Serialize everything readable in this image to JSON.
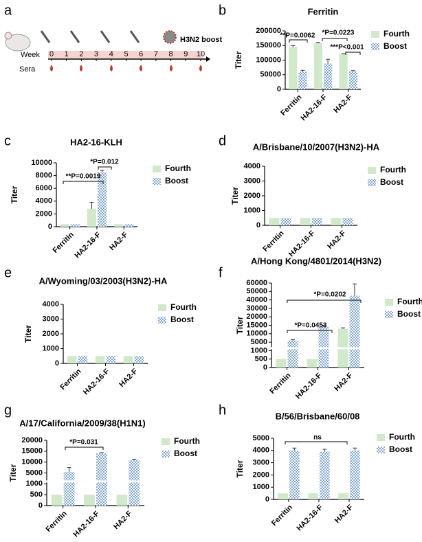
{
  "timeline": {
    "label": "a",
    "week_label": "Week",
    "sera_label": "Sera",
    "weeks": [
      0,
      1,
      2,
      3,
      4,
      5,
      6,
      7,
      8,
      9,
      10
    ],
    "boost_label": "H3N2 boost"
  },
  "chart_data": [
    {
      "type": "bar",
      "label": "b",
      "title": "Ferritin",
      "ylabel": "Titer",
      "categories": [
        "Ferritin",
        "HA2-16-F",
        "HA2-F"
      ],
      "series": [
        {
          "name": "Fourth",
          "color": "#cfe9c9",
          "values": [
            145000,
            158000,
            120000
          ],
          "errors": [
            5000,
            3000,
            2000
          ]
        },
        {
          "name": "Boost",
          "color": "#7fa6d8",
          "values": [
            60000,
            88000,
            62000
          ],
          "errors": [
            5000,
            15000,
            2000
          ]
        }
      ],
      "ylim": [
        0,
        200000
      ],
      "yticks": [
        0,
        50000,
        100000,
        150000,
        200000
      ],
      "annotations": [
        "**P=0.0062",
        "*P=0.0223",
        "***P<0.001"
      ]
    },
    {
      "type": "bar",
      "label": "c",
      "title": "HA2-16-KLH",
      "ylabel": "Titer",
      "categories": [
        "Ferritin",
        "HA2-16-F",
        "HA2-F"
      ],
      "series": [
        {
          "name": "Fourth",
          "color": "#cfe9c9",
          "values": [
            400,
            2800,
            400
          ],
          "errors": [
            0,
            1000,
            0
          ]
        },
        {
          "name": "Boost",
          "color": "#7fa6d8",
          "values": [
            400,
            8500,
            400
          ],
          "errors": [
            0,
            300,
            0
          ]
        }
      ],
      "ylim": [
        0,
        10000
      ],
      "yticks": [
        0,
        2000,
        4000,
        6000,
        8000,
        10000
      ],
      "annotations": [
        "**P=0.0019",
        "*P=0.012"
      ]
    },
    {
      "type": "bar",
      "label": "d",
      "title": "A/Brisbane/10/2007(H3N2)-HA",
      "ylabel": "Titer",
      "categories": [
        "Ferritin",
        "HA2-16-F",
        "HA2-F"
      ],
      "series": [
        {
          "name": "Fourth",
          "color": "#cfe9c9",
          "values": [
            500,
            500,
            500
          ],
          "errors": [
            0,
            0,
            0
          ]
        },
        {
          "name": "Boost",
          "color": "#7fa6d8",
          "values": [
            500,
            500,
            500
          ],
          "errors": [
            0,
            0,
            0
          ]
        }
      ],
      "ylim": [
        0,
        4000
      ],
      "yticks": [
        0,
        1000,
        2000,
        3000,
        4000
      ],
      "annotations": []
    },
    {
      "type": "bar",
      "label": "e",
      "title": "A/Wyoming/03/2003(H3N2)-HA",
      "ylabel": "Titer",
      "categories": [
        "Ferritin",
        "HA2-16-F",
        "HA2-F"
      ],
      "series": [
        {
          "name": "Fourth",
          "color": "#cfe9c9",
          "values": [
            500,
            500,
            500
          ],
          "errors": [
            0,
            0,
            0
          ]
        },
        {
          "name": "Boost",
          "color": "#7fa6d8",
          "values": [
            500,
            500,
            500
          ],
          "errors": [
            0,
            0,
            0
          ]
        }
      ],
      "ylim": [
        0,
        4000
      ],
      "yticks": [
        0,
        1000,
        2000,
        3000,
        4000
      ],
      "annotations": []
    },
    {
      "type": "bar",
      "label": "f",
      "title": "A/Hong Kong/4801/2014(H3N2)",
      "ylabel": "Titer",
      "categories": [
        "Ferritin",
        "HA2-16-F",
        "HA2-F"
      ],
      "series": [
        {
          "name": "Fourth",
          "color": "#cfe9c9",
          "values": [
            500,
            500,
            13000
          ],
          "errors": [
            0,
            0,
            500
          ]
        },
        {
          "name": "Boost",
          "color": "#7fa6d8",
          "values": [
            6000,
            14000,
            45000
          ],
          "errors": [
            500,
            1000,
            14000
          ]
        }
      ],
      "ylim": [
        0,
        60000
      ],
      "yscale": "segmented",
      "yticks": [
        0,
        500,
        1000,
        5000,
        10000,
        15000,
        20000,
        30000,
        40000,
        50000,
        60000
      ],
      "annotations": [
        "*P=0.0453",
        "*P=0.0202"
      ]
    },
    {
      "type": "bar",
      "label": "g",
      "title": "A/17/California/2009/38(H1N1)",
      "ylabel": "Titer",
      "categories": [
        "Ferritin",
        "HA2-16-F",
        "HA2-F"
      ],
      "series": [
        {
          "name": "Fourth",
          "color": "#cfe9c9",
          "values": [
            500,
            500,
            500
          ],
          "errors": [
            0,
            0,
            0
          ]
        },
        {
          "name": "Boost",
          "color": "#7fa6d8",
          "values": [
            5500,
            14000,
            11000
          ],
          "errors": [
            2000,
            300,
            300
          ]
        }
      ],
      "ylim": [
        0,
        20000
      ],
      "yscale": "segmented",
      "yticks": [
        0,
        500,
        1000,
        5000,
        10000,
        15000,
        20000
      ],
      "annotations": [
        "*P=0.031"
      ]
    },
    {
      "type": "bar",
      "label": "h",
      "title": "B/56/Brisbane/60/08",
      "ylabel": "Titer",
      "categories": [
        "Ferritin",
        "HA2-16-F",
        "HA2-F"
      ],
      "series": [
        {
          "name": "Fourth",
          "color": "#cfe9c9",
          "values": [
            500,
            500,
            500
          ],
          "errors": [
            0,
            0,
            0
          ]
        },
        {
          "name": "Boost",
          "color": "#7fa6d8",
          "values": [
            4000,
            3900,
            4000
          ],
          "errors": [
            200,
            200,
            200
          ]
        }
      ],
      "ylim": [
        0,
        5000
      ],
      "yticks": [
        0,
        1000,
        2000,
        3000,
        4000,
        5000
      ],
      "annotations": [
        "ns"
      ]
    }
  ]
}
